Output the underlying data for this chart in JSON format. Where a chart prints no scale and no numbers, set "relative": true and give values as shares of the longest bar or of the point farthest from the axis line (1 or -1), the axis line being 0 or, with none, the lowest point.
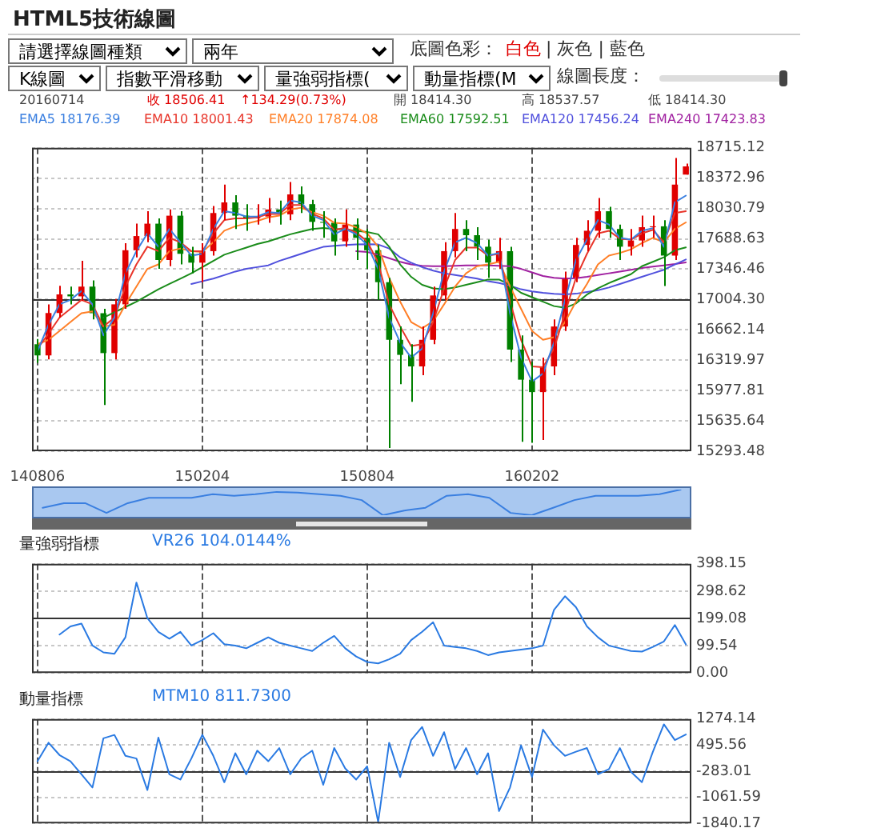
{
  "chart_data": [
    {
      "type": "candlestick",
      "title": "HTML5技術線圖",
      "annotations": [
        "請選擇線圖種類",
        "兩年",
        "底圖色彩：",
        "白色",
        "| 灰色 | 藍色",
        "K線圖",
        "指數平滑移動",
        "量強弱指標(",
        "動量指標(M",
        "線圖長度：",
        "20160714",
        "收 18506.41",
        "↑134.29(0.73%)",
        "開 18414.30",
        "高 18537.57",
        "低 18414.30"
      ],
      "categories": [
        "140806",
        null,
        null,
        null,
        null,
        null,
        null,
        null,
        null,
        null,
        null,
        null,
        null,
        null,
        null,
        "150204",
        null,
        null,
        null,
        null,
        null,
        null,
        null,
        null,
        null,
        null,
        null,
        null,
        null,
        null,
        "150804",
        null,
        null,
        null,
        null,
        null,
        null,
        null,
        null,
        null,
        null,
        null,
        null,
        null,
        null,
        "160202",
        null,
        null,
        null,
        null,
        null,
        null,
        null,
        null,
        null,
        null,
        null,
        null,
        null,
        null
      ],
      "ohlc": [
        [
          16500,
          16560,
          16290,
          16374
        ],
        [
          16374,
          16950,
          16330,
          16852
        ],
        [
          16852,
          17160,
          16800,
          17062
        ],
        [
          17062,
          17150,
          16950,
          17040
        ],
        [
          17040,
          17440,
          16990,
          17150
        ],
        [
          17150,
          17220,
          16780,
          16850
        ],
        [
          16850,
          16900,
          15814,
          16400
        ],
        [
          16400,
          17010,
          16330,
          16950
        ],
        [
          16950,
          17640,
          16900,
          17560
        ],
        [
          17560,
          17860,
          17480,
          17720
        ],
        [
          17720,
          18000,
          17650,
          17860
        ],
        [
          17860,
          17920,
          17350,
          17450
        ],
        [
          17450,
          18020,
          17380,
          17950
        ],
        [
          17950,
          18000,
          17400,
          17520
        ],
        [
          17520,
          17600,
          17300,
          17420
        ],
        [
          17420,
          17640,
          17200,
          17550
        ],
        [
          17550,
          18060,
          17500,
          17980
        ],
        [
          17980,
          18300,
          17900,
          18100
        ],
        [
          18100,
          18180,
          17800,
          17950
        ],
        [
          17950,
          18080,
          17780,
          17920
        ],
        [
          17920,
          18080,
          17850,
          17940
        ],
        [
          17940,
          18150,
          17870,
          18020
        ],
        [
          18020,
          18120,
          17850,
          17965
        ],
        [
          17965,
          18330,
          17900,
          18190
        ],
        [
          18190,
          18280,
          17980,
          18080
        ],
        [
          18080,
          18130,
          17780,
          17880
        ],
        [
          17880,
          18000,
          17700,
          17870
        ],
        [
          17870,
          17920,
          17500,
          17660
        ],
        [
          17660,
          18020,
          17600,
          17850
        ],
        [
          17850,
          17920,
          17450,
          17700
        ],
        [
          17700,
          17800,
          17350,
          17560
        ],
        [
          17560,
          17620,
          17000,
          17200
        ],
        [
          17200,
          17250,
          15330,
          16550
        ],
        [
          16550,
          16700,
          16050,
          16380
        ],
        [
          16380,
          16500,
          15850,
          16250
        ],
        [
          16250,
          16700,
          16150,
          16550
        ],
        [
          16550,
          17150,
          16500,
          17050
        ],
        [
          17050,
          17650,
          17000,
          17550
        ],
        [
          17550,
          17980,
          17480,
          17800
        ],
        [
          17800,
          17900,
          17550,
          17730
        ],
        [
          17730,
          17820,
          17450,
          17600
        ],
        [
          17600,
          17680,
          17250,
          17420
        ],
        [
          17420,
          17700,
          17350,
          17550
        ],
        [
          17550,
          17600,
          16300,
          16440
        ],
        [
          16440,
          16600,
          15400,
          16100
        ],
        [
          16100,
          16300,
          15389,
          15960
        ],
        [
          15960,
          16350,
          15420,
          16250
        ],
        [
          16250,
          16780,
          16150,
          16700
        ],
        [
          16700,
          17320,
          16650,
          17250
        ],
        [
          17250,
          17700,
          17200,
          17620
        ],
        [
          17620,
          17900,
          17550,
          17780
        ],
        [
          17780,
          18150,
          17700,
          18000
        ],
        [
          18000,
          18050,
          17700,
          17800
        ],
        [
          17800,
          17850,
          17450,
          17600
        ],
        [
          17600,
          17800,
          17500,
          17670
        ],
        [
          17670,
          17950,
          17600,
          17820
        ],
        [
          17820,
          17950,
          17700,
          17830
        ],
        [
          17830,
          17900,
          17157,
          17500
        ],
        [
          17500,
          18600,
          17450,
          18300
        ],
        [
          18414.3,
          18537.57,
          18414.3,
          18506.41
        ]
      ],
      "series": [
        {
          "type": "line",
          "name": "EMA5 18176.39",
          "color": "#3a7fe0",
          "values": [
            16420,
            16720,
            16950,
            17000,
            17100,
            16950,
            16600,
            16800,
            17300,
            17550,
            17750,
            17600,
            17800,
            17650,
            17500,
            17520,
            17800,
            18000,
            17980,
            17940,
            17940,
            17990,
            17980,
            18120,
            18100,
            17950,
            17900,
            17740,
            17800,
            17740,
            17620,
            17350,
            16800,
            16520,
            16350,
            16450,
            16850,
            17320,
            17650,
            17700,
            17640,
            17500,
            17530,
            16850,
            16350,
            16080,
            16170,
            16520,
            17000,
            17450,
            17680,
            17900,
            17850,
            17700,
            17680,
            17780,
            17810,
            17600,
            18100,
            18176.39
          ]
        },
        {
          "type": "line",
          "name": "EMA10 18001.43",
          "color": "#e8352a",
          "values": [
            16450,
            16620,
            16800,
            16900,
            17000,
            16950,
            16700,
            16800,
            17150,
            17400,
            17600,
            17550,
            17700,
            17650,
            17550,
            17550,
            17750,
            17900,
            17920,
            17920,
            17930,
            17970,
            17970,
            18070,
            18070,
            17970,
            17920,
            17790,
            17810,
            17760,
            17660,
            17420,
            16950,
            16700,
            16480,
            16500,
            16750,
            17130,
            17450,
            17590,
            17590,
            17500,
            17520,
            16980,
            16550,
            16250,
            16240,
            16450,
            16850,
            17250,
            17520,
            17750,
            17780,
            17690,
            17680,
            17750,
            17790,
            17650,
            17980,
            18001.43
          ]
        },
        {
          "type": "line",
          "name": "EMA20 17874.08",
          "color": "#ff7f27",
          "values": [
            16500,
            16550,
            16650,
            16750,
            16850,
            16870,
            16700,
            16720,
            16950,
            17150,
            17350,
            17400,
            17550,
            17580,
            17550,
            17540,
            17650,
            17780,
            17830,
            17860,
            17890,
            17930,
            17950,
            18020,
            18040,
            17990,
            17950,
            17870,
            17860,
            17820,
            17750,
            17600,
            17250,
            16980,
            16750,
            16680,
            16760,
            16950,
            17150,
            17300,
            17380,
            17400,
            17430,
            17150,
            16900,
            16650,
            16550,
            16580,
            16750,
            16980,
            17180,
            17400,
            17500,
            17530,
            17570,
            17640,
            17700,
            17650,
            17800,
            17874.08
          ]
        },
        {
          "type": "line",
          "name": "EMA60 17592.51",
          "color": "#1a8c1a",
          "values": [
            null,
            null,
            null,
            null,
            null,
            null,
            16800,
            16860,
            16920,
            16980,
            17050,
            17120,
            17180,
            17240,
            17300,
            17370,
            17440,
            17510,
            17550,
            17590,
            17630,
            17660,
            17700,
            17740,
            17770,
            17800,
            17810,
            17800,
            17795,
            17780,
            17765,
            17740,
            17600,
            17400,
            17260,
            17170,
            17130,
            17120,
            17140,
            17170,
            17200,
            17230,
            17230,
            17170,
            17080,
            17030,
            16980,
            16930,
            16910,
            16960,
            17060,
            17130,
            17190,
            17240,
            17290,
            17380,
            17430,
            17480,
            17560,
            17592.51
          ]
        },
        {
          "type": "line",
          "name": "EMA120 17456.24",
          "color": "#5050dd",
          "values": [
            null,
            null,
            null,
            null,
            null,
            null,
            null,
            null,
            null,
            null,
            null,
            null,
            null,
            null,
            17180,
            17210,
            17240,
            17280,
            17320,
            17350,
            17370,
            17390,
            17440,
            17480,
            17520,
            17560,
            17598,
            17610,
            17620,
            17625,
            17628,
            17625,
            17580,
            17480,
            17420,
            17370,
            17330,
            17300,
            17280,
            17260,
            17240,
            17210,
            17190,
            17160,
            17120,
            17095,
            17080,
            17068,
            17062,
            17070,
            17090,
            17110,
            17140,
            17180,
            17220,
            17260,
            17300,
            17340,
            17400,
            17456.24
          ]
        },
        {
          "type": "line",
          "name": "EMA240 17423.83",
          "color": "#a020a0",
          "values": [
            null,
            null,
            null,
            null,
            null,
            null,
            null,
            null,
            null,
            null,
            null,
            null,
            null,
            null,
            null,
            null,
            null,
            null,
            null,
            null,
            null,
            null,
            null,
            null,
            null,
            null,
            null,
            null,
            null,
            17550,
            17540,
            17510,
            17470,
            17430,
            17400,
            17385,
            17380,
            17380,
            17385,
            17390,
            17390,
            17390,
            17385,
            17380,
            17350,
            17310,
            17270,
            17250,
            17240,
            17245,
            17260,
            17280,
            17300,
            17320,
            17340,
            17360,
            17375,
            17390,
            17405,
            17423.83
          ]
        }
      ],
      "ylim": [
        15293.48,
        18715.12
      ],
      "yticks": [
        15293.48,
        15635.64,
        15977.81,
        16319.97,
        16662.14,
        {
          "value": 17004.3,
          "label": "17004.30"
        },
        17346.46,
        17688.63,
        18030.79,
        18372.96,
        18715.12
      ],
      "ref_lines": [
        {
          "axis": "y",
          "value": 17004.3
        }
      ],
      "grid": true,
      "legend": "top"
    },
    {
      "type": "line",
      "relative": true,
      "tick_labels": false,
      "color": "#3a7fe0",
      "categories": [
        null,
        null,
        null,
        null,
        null,
        null,
        null,
        null,
        null,
        null,
        null,
        null,
        null,
        null,
        null,
        null,
        null,
        null,
        null,
        null,
        null,
        null,
        null,
        null,
        null,
        null,
        null,
        null,
        null,
        null,
        null
      ],
      "values": [
        0.29,
        0.47,
        0.47,
        0.09,
        0.47,
        0.68,
        0.68,
        0.68,
        0.82,
        0.76,
        0.82,
        0.91,
        0.88,
        0.82,
        0.76,
        0.59,
        0,
        0.18,
        0.29,
        0.76,
        0.82,
        0.68,
        0.09,
        0,
        0.29,
        0.59,
        0.76,
        0.76,
        0.76,
        0.82,
        1
      ]
    },
    {
      "type": "line",
      "title": "量強弱指標",
      "tick_labels": "y",
      "categories": [
        "140806",
        null,
        null,
        null,
        null,
        null,
        null,
        null,
        null,
        null,
        null,
        null,
        null,
        null,
        null,
        "150204",
        null,
        null,
        null,
        null,
        null,
        null,
        null,
        null,
        null,
        null,
        null,
        null,
        null,
        null,
        "150804",
        null,
        null,
        null,
        null,
        null,
        null,
        null,
        null,
        null,
        null,
        null,
        null,
        null,
        null,
        "160202",
        null,
        null,
        null,
        null,
        null,
        null,
        null,
        null,
        null,
        null,
        null,
        null,
        null,
        null
      ],
      "series": [
        {
          "name": "VR26 104.0144%",
          "color": "#2a7ae2",
          "values": [
            null,
            null,
            140,
            170,
            180,
            100,
            75,
            70,
            130,
            330,
            200,
            150,
            125,
            150,
            100,
            120,
            145,
            105,
            100,
            90,
            110,
            130,
            110,
            100,
            90,
            80,
            110,
            135,
            90,
            60,
            40,
            35,
            50,
            70,
            120,
            150,
            185,
            100,
            95,
            90,
            80,
            65,
            75,
            80,
            85,
            90,
            100,
            230,
            280,
            240,
            170,
            130,
            100,
            90,
            80,
            78,
            95,
            115,
            175,
            104.0144
          ]
        }
      ],
      "ylim": [
        0,
        398.15
      ],
      "yticks": [
        {
          "value": 0,
          "label": "0.00"
        },
        99.54,
        199.08,
        298.62,
        398.15
      ],
      "ref_lines": [
        {
          "axis": "y",
          "value": 199.08
        }
      ],
      "grid": true,
      "legend": "top left"
    },
    {
      "type": "line",
      "title": "動量指標",
      "tick_labels": "y",
      "categories": [
        "140806",
        null,
        null,
        null,
        null,
        null,
        null,
        null,
        null,
        null,
        null,
        null,
        null,
        null,
        null,
        "150204",
        null,
        null,
        null,
        null,
        null,
        null,
        null,
        null,
        null,
        null,
        null,
        null,
        null,
        null,
        "150804",
        null,
        null,
        null,
        null,
        null,
        null,
        null,
        null,
        null,
        null,
        null,
        null,
        null,
        null,
        "160202",
        null,
        null,
        null,
        null,
        null,
        null,
        null,
        null,
        null,
        null,
        null,
        null,
        null,
        null
      ],
      "series": [
        {
          "name": "MTM10 811.7300",
          "color": "#2a7ae2",
          "values": [
            15,
            567,
            200,
            15,
            -377,
            -769,
            700,
            800,
            175,
            96,
            -846,
            722,
            -377,
            -532,
            96,
            804,
            175,
            -612,
            253,
            -377,
            331,
            15,
            408,
            -377,
            100,
            331,
            -690,
            408,
            -200,
            -532,
            -140,
            -1800,
            567,
            -455,
            645,
            1037,
            175,
            882,
            -220,
            408,
            -377,
            253,
            -1475,
            -769,
            490,
            -455,
            960,
            490,
            175,
            300,
            408,
            -377,
            -220,
            408,
            -300,
            -612,
            300,
            1116,
            645,
            811.73
          ]
        }
      ],
      "ylim": [
        -1840.17,
        1274.14
      ],
      "yticks": [
        -1840.17,
        -1061.59,
        -283.01,
        495.56,
        1274.14
      ],
      "ref_lines": [
        {
          "axis": "y",
          "value": -283.01
        }
      ],
      "grid": true,
      "legend": "top left"
    }
  ]
}
